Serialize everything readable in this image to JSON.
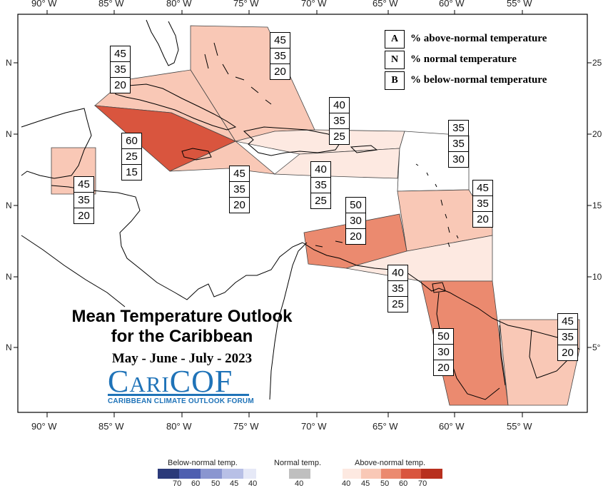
{
  "title_line1": "Mean Temperature Outlook",
  "title_line2": "for the Caribbean",
  "subtitle": "May - June - July - 2023",
  "logo": {
    "name": "CariCOF",
    "tagline": "CARIBBEAN CLIMATE OUTLOOK FORUM",
    "color": "#1f73b8"
  },
  "key": [
    {
      "letter": "A",
      "text": "% above-normal temperature"
    },
    {
      "letter": "N",
      "text": "% normal temperature"
    },
    {
      "letter": "B",
      "text": "% below-normal temperature"
    }
  ],
  "longitude_labels": [
    "90° W",
    "85° W",
    "80° W",
    "75° W",
    "70° W",
    "65° W",
    "60° W",
    "55° W"
  ],
  "latitude_labels_left": [
    "N",
    "N",
    "N",
    "N",
    "N"
  ],
  "latitude_labels_right": [
    "25",
    "20",
    "15",
    "10",
    "5°"
  ],
  "regions": [
    {
      "id": "bahamas",
      "A": "45",
      "N": "35",
      "B": "20",
      "color": "#f9c8b6"
    },
    {
      "id": "cuba",
      "A": "45",
      "N": "35",
      "B": "20",
      "color": "#f9c8b6"
    },
    {
      "id": "cayman-jamaica",
      "A": "60",
      "N": "25",
      "B": "15",
      "color": "#d9553e"
    },
    {
      "id": "belize",
      "A": "45",
      "N": "35",
      "B": "20",
      "color": "#f9c8b6"
    },
    {
      "id": "haiti-southwest",
      "A": "45",
      "N": "35",
      "B": "20",
      "color": "#f9c8b6"
    },
    {
      "id": "hispaniola-north",
      "A": "40",
      "N": "35",
      "B": "25",
      "color": "#fde9e1"
    },
    {
      "id": "hispaniola-south",
      "A": "40",
      "N": "35",
      "B": "25",
      "color": "#fde9e1"
    },
    {
      "id": "northern-leewards",
      "A": "35",
      "N": "35",
      "B": "30",
      "color": "#ffffff"
    },
    {
      "id": "leewards-windwards",
      "A": "45",
      "N": "35",
      "B": "20",
      "color": "#f9c8b6"
    },
    {
      "id": "abc-islands",
      "A": "50",
      "N": "30",
      "B": "20",
      "color": "#eb8a6f"
    },
    {
      "id": "trinidad",
      "A": "40",
      "N": "35",
      "B": "25",
      "color": "#fde9e1"
    },
    {
      "id": "guyana",
      "A": "50",
      "N": "30",
      "B": "20",
      "color": "#eb8a6f"
    },
    {
      "id": "suriname-guiana",
      "A": "45",
      "N": "35",
      "B": "20",
      "color": "#f9c8b6"
    }
  ],
  "colorbar": {
    "below": {
      "label": "Below-normal temp.",
      "ticks": [
        "70",
        "60",
        "50",
        "45",
        "40"
      ],
      "colors": [
        "#2b3a7a",
        "#4e5fb0",
        "#8a96d0",
        "#b8c0e6",
        "#e6e9f7"
      ]
    },
    "normal": {
      "label": "Normal temp.",
      "ticks": [
        "40"
      ],
      "colors": [
        "#bfbfbf"
      ]
    },
    "above": {
      "label": "Above-normal temp.",
      "ticks": [
        "40",
        "45",
        "50",
        "60",
        "70"
      ],
      "colors": [
        "#fde9e1",
        "#f9c8b6",
        "#eb8a6f",
        "#d9553e",
        "#b8301e"
      ]
    }
  }
}
